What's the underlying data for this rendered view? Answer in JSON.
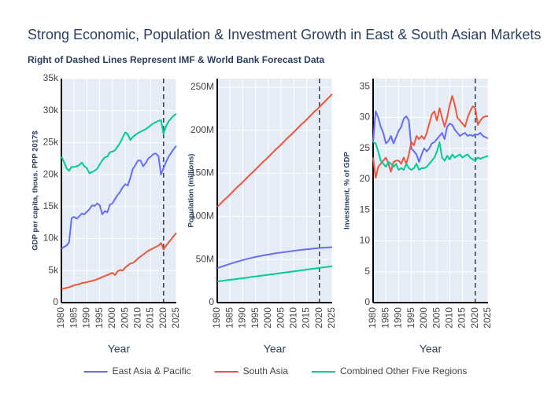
{
  "title": "Strong Economic, Population & Investment Growth in East & South Asian Markets",
  "subtitle": "Right of Dashed Lines Represent IMF & World Bank Forecast Data",
  "chart_data": [
    {
      "type": "line",
      "xlabel": "Year",
      "ylabel": "GDP per capita, thous. PPP 2017$",
      "grid": true,
      "vline": 2020,
      "xlim": [
        1980,
        2025
      ],
      "xticks": [
        1980,
        1985,
        1990,
        1995,
        2000,
        2005,
        2010,
        2015,
        2020,
        2025
      ],
      "ylim": [
        0,
        35000
      ],
      "yticks": [
        0,
        {
          "value": 5000,
          "label": "5k"
        },
        {
          "value": 10000,
          "label": "10k"
        },
        {
          "value": 15000,
          "label": "15k"
        },
        {
          "value": 20000,
          "label": "20k"
        },
        {
          "value": 25000,
          "label": "25k"
        },
        {
          "value": 30000,
          "label": "30k"
        },
        {
          "value": 35000,
          "label": "35k"
        }
      ],
      "x": [
        1980,
        1981,
        1982,
        1983,
        1984,
        1985,
        1986,
        1987,
        1988,
        1989,
        1990,
        1991,
        1992,
        1993,
        1994,
        1995,
        1996,
        1997,
        1998,
        1999,
        2000,
        2001,
        2002,
        2003,
        2004,
        2005,
        2006,
        2007,
        2008,
        2009,
        2010,
        2011,
        2012,
        2013,
        2014,
        2015,
        2016,
        2017,
        2018,
        2019,
        2020,
        2021,
        2022,
        2023,
        2024,
        2025
      ],
      "series": [
        {
          "name": "East Asia & Pacific",
          "color": "#636efa",
          "values": [
            8400,
            8700,
            8900,
            9400,
            13200,
            13400,
            13100,
            13500,
            13900,
            13800,
            14200,
            14600,
            15200,
            15100,
            15500,
            15200,
            13800,
            14300,
            14100,
            15300,
            15500,
            16200,
            16800,
            17300,
            18000,
            18500,
            18300,
            19500,
            20900,
            21500,
            22200,
            22200,
            21300,
            21800,
            22500,
            22800,
            23200,
            23300,
            22900,
            20000,
            21000,
            22000,
            22800,
            23400,
            24000,
            24500
          ]
        },
        {
          "name": "South Asia",
          "color": "#ef553b",
          "values": [
            2100,
            2200,
            2300,
            2400,
            2550,
            2700,
            2800,
            2900,
            3050,
            3100,
            3200,
            3300,
            3400,
            3500,
            3650,
            3800,
            4000,
            4150,
            4300,
            4500,
            4650,
            4300,
            4900,
            5100,
            5000,
            5500,
            5800,
            6100,
            6200,
            6500,
            6900,
            7200,
            7500,
            7800,
            8100,
            8300,
            8500,
            8700,
            8900,
            9300,
            8300,
            8900,
            9400,
            9900,
            10400,
            10900
          ]
        },
        {
          "name": "Combined Other Five Regions",
          "color": "#00cc96",
          "values": [
            22800,
            22000,
            21000,
            20600,
            21200,
            21200,
            21300,
            21500,
            21900,
            21300,
            21000,
            20200,
            20400,
            20600,
            20900,
            21600,
            22200,
            22700,
            22800,
            23500,
            23600,
            23800,
            24400,
            25000,
            25800,
            26600,
            26300,
            25400,
            25900,
            26200,
            26500,
            26700,
            26900,
            27100,
            27400,
            27700,
            28000,
            28200,
            28400,
            28500,
            26400,
            27600,
            28300,
            28800,
            29200,
            29500
          ]
        }
      ]
    },
    {
      "type": "line",
      "xlabel": "Year",
      "ylabel": "Population (millions)",
      "grid": true,
      "vline": 2020,
      "xlim": [
        1980,
        2025
      ],
      "xticks": [
        1980,
        1985,
        1990,
        1995,
        2000,
        2005,
        2010,
        2015,
        2020,
        2025
      ],
      "ylim": [
        0,
        260000000
      ],
      "yticks": [
        0,
        {
          "value": 50000000,
          "label": "50M"
        },
        {
          "value": 100000000,
          "label": "100M"
        },
        {
          "value": 150000000,
          "label": "150M"
        },
        {
          "value": 200000000,
          "label": "200M"
        },
        {
          "value": 250000000,
          "label": "250M"
        }
      ],
      "x": [
        1980,
        1981,
        1982,
        1983,
        1984,
        1985,
        1986,
        1987,
        1988,
        1989,
        1990,
        1991,
        1992,
        1993,
        1994,
        1995,
        1996,
        1997,
        1998,
        1999,
        2000,
        2001,
        2002,
        2003,
        2004,
        2005,
        2006,
        2007,
        2008,
        2009,
        2010,
        2011,
        2012,
        2013,
        2014,
        2015,
        2016,
        2017,
        2018,
        2019,
        2020,
        2021,
        2022,
        2023,
        2024,
        2025
      ],
      "series": [
        {
          "color": "#636efa",
          "values": [
            40000000,
            41000000,
            42000000,
            43000000,
            44000000,
            45000000,
            45900000,
            46800000,
            47700000,
            48500000,
            49300000,
            50100000,
            50900000,
            51600000,
            52300000,
            53000000,
            53600000,
            54200000,
            54800000,
            55300000,
            55800000,
            56300000,
            56800000,
            57300000,
            57700000,
            58100000,
            58500000,
            58900000,
            59300000,
            59700000,
            60100000,
            60500000,
            60900000,
            61300000,
            61600000,
            61900000,
            62200000,
            62500000,
            62800000,
            63100000,
            63400000,
            63600000,
            63800000,
            64000000,
            64200000,
            64400000
          ]
        },
        {
          "color": "#ef553b",
          "values": [
            111000000,
            114000000,
            117000000,
            120000000,
            122500000,
            125500000,
            128500000,
            131500000,
            134500000,
            137000000,
            140000000,
            143000000,
            146000000,
            149000000,
            151500000,
            154500000,
            157500000,
            160500000,
            163500000,
            166000000,
            169000000,
            172000000,
            175000000,
            178000000,
            180500000,
            183500000,
            186500000,
            189500000,
            192500000,
            195000000,
            198000000,
            201000000,
            204000000,
            207000000,
            209500000,
            212500000,
            215500000,
            218500000,
            221500000,
            224000000,
            227000000,
            230000000,
            233000000,
            236000000,
            239000000,
            242000000
          ]
        },
        {
          "color": "#00cc96",
          "values": [
            24500000,
            24900000,
            25300000,
            25700000,
            26100000,
            26500000,
            26800000,
            27200000,
            27600000,
            28000000,
            28400000,
            28800000,
            29200000,
            29600000,
            30000000,
            30400000,
            30800000,
            31200000,
            31500000,
            31900000,
            32300000,
            32700000,
            33100000,
            33500000,
            33900000,
            34300000,
            34700000,
            35100000,
            35500000,
            35900000,
            36300000,
            36700000,
            37100000,
            37500000,
            37900000,
            38300000,
            38700000,
            39100000,
            39500000,
            39900000,
            40300000,
            40700000,
            41100000,
            41400000,
            41800000,
            42200000
          ]
        }
      ]
    },
    {
      "type": "line",
      "xlabel": "Year",
      "ylabel": "Investment, % of GDP",
      "grid": true,
      "vline": 2020,
      "xlim": [
        1980,
        2025
      ],
      "xticks": [
        1980,
        1985,
        1990,
        1995,
        2000,
        2005,
        2010,
        2015,
        2020,
        2025
      ],
      "ylim": [
        0,
        36.3
      ],
      "yticks": [
        0,
        5,
        10,
        15,
        20,
        25,
        30,
        35
      ],
      "x": [
        1980,
        1981,
        1982,
        1983,
        1984,
        1985,
        1986,
        1987,
        1988,
        1989,
        1990,
        1991,
        1992,
        1993,
        1994,
        1995,
        1996,
        1997,
        1998,
        1999,
        2000,
        2001,
        2002,
        2003,
        2004,
        2005,
        2006,
        2007,
        2008,
        2009,
        2010,
        2011,
        2012,
        2013,
        2014,
        2015,
        2016,
        2017,
        2018,
        2019,
        2020,
        2021,
        2022,
        2023,
        2024,
        2025
      ],
      "series": [
        {
          "color": "#636efa",
          "values": [
            26.0,
            31.0,
            30.0,
            28.5,
            27.5,
            25.8,
            26.2,
            27.0,
            25.8,
            26.8,
            27.8,
            28.5,
            29.8,
            30.2,
            29.5,
            25.0,
            24.5,
            24.0,
            22.8,
            24.0,
            25.0,
            24.5,
            25.0,
            25.8,
            26.0,
            26.5,
            27.0,
            27.5,
            26.5,
            28.5,
            29.0,
            28.8,
            28.0,
            27.5,
            27.0,
            27.3,
            27.5,
            27.0,
            27.2,
            27.0,
            27.3,
            27.2,
            27.5,
            27.0,
            26.8,
            26.6
          ]
        },
        {
          "color": "#ef553b",
          "values": [
            23.5,
            20.2,
            22.0,
            22.5,
            23.0,
            23.5,
            22.5,
            21.2,
            22.8,
            23.0,
            23.0,
            22.5,
            23.5,
            22.5,
            24.0,
            26.0,
            25.5,
            27.0,
            26.5,
            27.0,
            26.5,
            27.5,
            29.0,
            30.5,
            31.0,
            29.5,
            31.5,
            30.0,
            28.5,
            30.0,
            32.0,
            33.5,
            32.0,
            30.0,
            29.5,
            29.0,
            28.5,
            30.0,
            31.0,
            31.8,
            31.5,
            28.8,
            29.5,
            30.0,
            30.2,
            30.2
          ]
        },
        {
          "color": "#00cc96",
          "values": [
            26.0,
            25.8,
            24.5,
            23.0,
            22.5,
            22.0,
            22.8,
            22.5,
            22.0,
            22.5,
            21.5,
            21.8,
            21.5,
            22.5,
            21.8,
            21.5,
            21.8,
            22.5,
            21.5,
            21.8,
            21.8,
            22.0,
            22.5,
            23.0,
            23.5,
            24.5,
            26.0,
            23.5,
            23.0,
            23.8,
            23.2,
            24.0,
            23.5,
            23.8,
            24.0,
            23.5,
            23.8,
            24.0,
            23.5,
            23.2,
            23.0,
            23.5,
            23.3,
            23.5,
            23.6,
            23.8
          ]
        }
      ]
    }
  ]
}
